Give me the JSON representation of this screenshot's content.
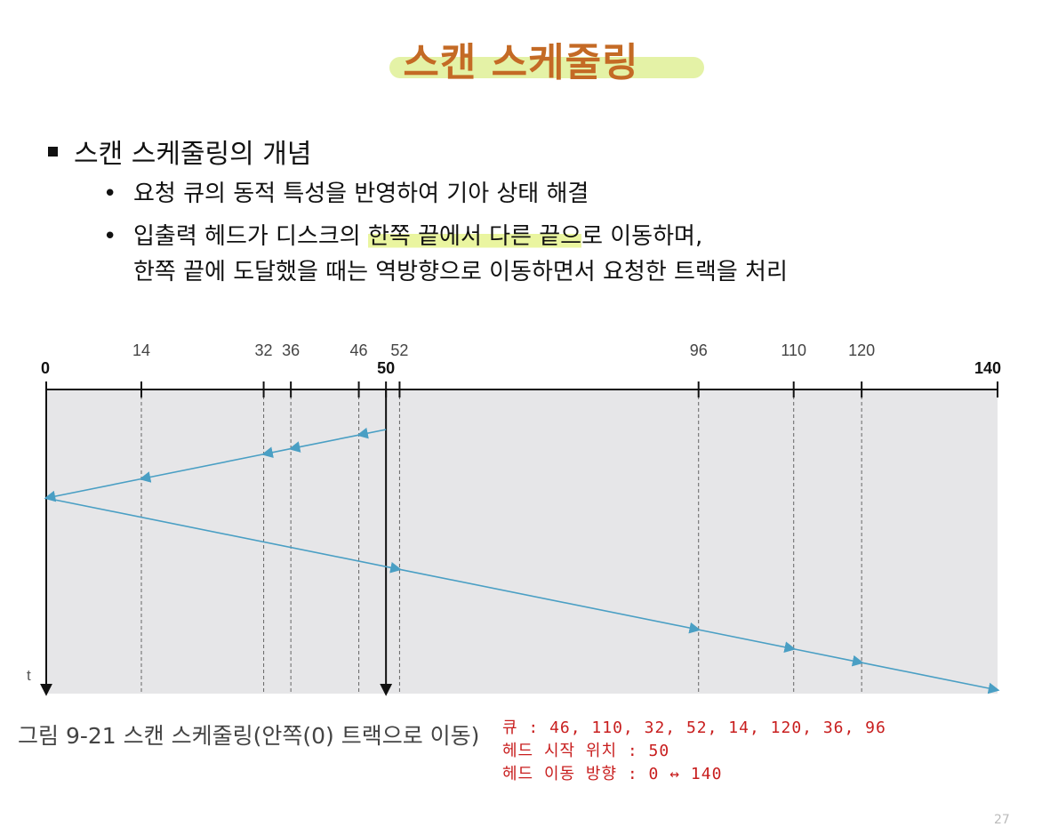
{
  "slide": {
    "title": "스캔 스케줄링",
    "heading": "스캔 스케줄링의 개념",
    "bullets": [
      {
        "text": "요청 큐의 동적 특성을 반영하여 기아 상태 해결"
      },
      {
        "before": "입출력 헤드가 디스크의 ",
        "highlight": "한쪽 끝에서 다른 끝으",
        "after": "로 이동하며,",
        "line2": "한쪽 끝에 도달했을 때는 역방향으로 이동하면서 요청한 트랙을 처리"
      }
    ],
    "caption": "그림 9-21  스캔 스케줄링(안쪽(0) 트랙으로 이동)",
    "notes": [
      "큐 : 46, 110, 32, 52, 14, 120, 36, 96",
      "헤드 시작 위치 : 50",
      "헤드 이동 방향 : 0 ↔ 140"
    ],
    "page_number": "27"
  },
  "chart_data": {
    "type": "line",
    "xlim": [
      0,
      140
    ],
    "xlabel": "",
    "ylabel": "t",
    "track_ticks": [
      0,
      14,
      32,
      36,
      46,
      50,
      52,
      96,
      110,
      120,
      140
    ],
    "bold_ticks": [
      0,
      50,
      140
    ],
    "head_start": 50,
    "service_order": [
      50,
      46,
      36,
      32,
      14,
      0,
      52,
      96,
      110,
      120,
      140
    ],
    "colors": {
      "path": "#4a9fc4",
      "panel": "#e6e6e8"
    }
  }
}
